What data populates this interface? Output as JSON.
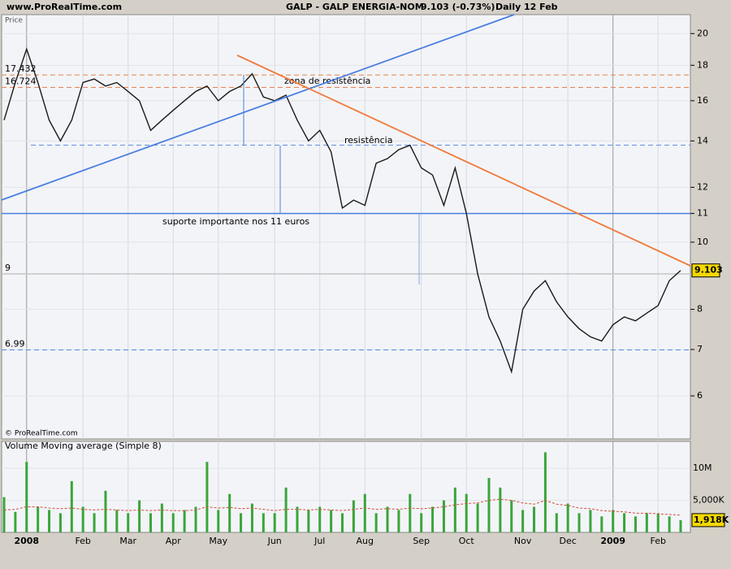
{
  "header": {
    "site": "www.ProRealTime.com",
    "symbol": "GALP - GALP ENERGIA-NOM",
    "quote": "9.103 (-0.73%)",
    "period": "Daily",
    "date": "12 Feb",
    "price_label": "Price",
    "copyright": "© ProRealTime.com"
  },
  "chart_data": [
    {
      "type": "line",
      "color": "#1a1a1a",
      "log": true,
      "grid": true,
      "categories": [
        "",
        null,
        "2008",
        null,
        null,
        null,
        null,
        "Feb",
        null,
        null,
        null,
        "Mar",
        null,
        null,
        null,
        "Apr",
        null,
        null,
        null,
        "May",
        null,
        null,
        null,
        null,
        "Jun",
        null,
        null,
        null,
        "Jul",
        null,
        null,
        null,
        "Aug",
        null,
        null,
        null,
        null,
        "Sep",
        null,
        null,
        null,
        "Oct",
        null,
        null,
        null,
        null,
        "Nov",
        null,
        null,
        null,
        "Dec",
        null,
        null,
        null,
        "2009",
        null,
        null,
        null,
        "Feb",
        null,
        null
      ],
      "values": [
        15.0,
        17,
        19,
        17,
        15,
        14,
        15,
        17,
        17.2,
        16.8,
        17,
        16.5,
        16,
        14.5,
        15,
        15.5,
        16,
        16.5,
        16.8,
        16,
        16.5,
        16.8,
        17.5,
        16.2,
        16,
        16.3,
        15,
        14,
        14.5,
        13.5,
        11.2,
        11.5,
        11.3,
        13,
        13.2,
        13.6,
        13.8,
        12.8,
        12.5,
        11.3,
        12.8,
        11,
        9,
        7.8,
        7.2,
        6.5,
        8,
        8.5,
        8.8,
        8.2,
        7.8,
        7.5,
        7.3,
        7.2,
        7.6,
        7.8,
        7.7,
        7.9,
        8.1,
        8.8,
        9.103
      ],
      "ylim": [
        5.2,
        21.3
      ],
      "yticks": [
        6,
        7,
        8,
        10,
        11,
        12,
        14,
        16,
        18,
        20
      ],
      "levels": [
        {
          "value": 17.432,
          "color": "#e8834a",
          "dashed": true,
          "show_value": true
        },
        {
          "value": 16.724,
          "color": "#e8834a",
          "dashed": true,
          "show_value": true
        },
        {
          "value": 13.8,
          "color": "#5b8be0",
          "dashed": true,
          "show_value": false
        },
        {
          "value": 11,
          "color": "#4a7fe0",
          "dashed": false,
          "show_value": false
        },
        {
          "value": 9,
          "color": "#c8c8c8",
          "dashed": false,
          "show_value": true
        },
        {
          "value": 6.99,
          "color": "#5b8be0",
          "dashed": true,
          "show_value": true
        }
      ],
      "annotations": [
        {
          "text": "zona de resistência",
          "color": "#e8834a"
        },
        {
          "text": "resistência",
          "color": "#5b8be0"
        },
        {
          "text": "suporte importante nos 11 euros",
          "color": "#4a7fe0"
        }
      ]
    },
    {
      "type": "bar",
      "title": "Volume Moving average (Simple 8)",
      "color": "#3aa53a",
      "ma_color": "#d0503a",
      "values": [
        5500000,
        3200000,
        11000000,
        4000000,
        3500000,
        3000000,
        8000000,
        4000000,
        3000000,
        6500000,
        3500000,
        3000000,
        5000000,
        3000000,
        4500000,
        3000000,
        3500000,
        4000000,
        11000000,
        3500000,
        6000000,
        3000000,
        4500000,
        3000000,
        3000000,
        7000000,
        4000000,
        3500000,
        4000000,
        3500000,
        3000000,
        5000000,
        6000000,
        3000000,
        4000000,
        3500000,
        6000000,
        3000000,
        4000000,
        5000000,
        7000000,
        6000000,
        4500000,
        8500000,
        7000000,
        5000000,
        3500000,
        4000000,
        12500000,
        3000000,
        4500000,
        3000000,
        3500000,
        2500000,
        3500000,
        3000000,
        2500000,
        3000000,
        3000000,
        2500000,
        1918000
      ],
      "ma": [
        3500000,
        3600000,
        4000000,
        4000000,
        3800000,
        3700000,
        3800000,
        3600000,
        3500000,
        3600000,
        3500000,
        3400000,
        3500000,
        3400000,
        3500000,
        3400000,
        3400000,
        3500000,
        4000000,
        3800000,
        3900000,
        3700000,
        3800000,
        3600000,
        3400000,
        3600000,
        3600000,
        3500000,
        3600000,
        3500000,
        3400000,
        3600000,
        3800000,
        3600000,
        3700000,
        3600000,
        3800000,
        3700000,
        3800000,
        4000000,
        4300000,
        4500000,
        4600000,
        5000000,
        5200000,
        5000000,
        4600000,
        4400000,
        5000000,
        4400000,
        4200000,
        3800000,
        3700000,
        3400000,
        3300000,
        3200000,
        3000000,
        3000000,
        2900000,
        2800000,
        2700000
      ],
      "last_label": "1,918K",
      "ylim": [
        0,
        14200000
      ],
      "yticks": [
        {
          "value": 5000000,
          "label": "5,000K"
        },
        {
          "value": 10000000,
          "label": "10M"
        }
      ]
    }
  ]
}
